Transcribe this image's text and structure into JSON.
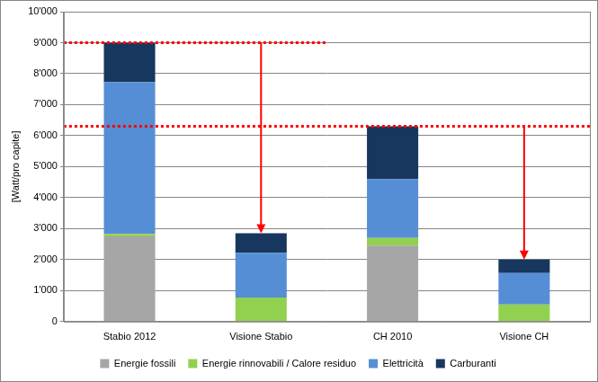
{
  "chart_data": {
    "type": "bar",
    "y_label": "[Watt/pro capite]",
    "categories": [
      "Stabio 2012",
      "Visione Stabio",
      "CH 2010",
      "Visione CH"
    ],
    "series": [
      {
        "name": "Energie fossili",
        "color": "#a6a6a6",
        "values": [
          2750,
          0,
          2450,
          0
        ]
      },
      {
        "name": "Energie rinnovabili / Calore residuo",
        "color": "#92d050",
        "values": [
          80,
          780,
          250,
          550
        ]
      },
      {
        "name": "Elettricità",
        "color": "#558ed5",
        "values": [
          4900,
          1440,
          1900,
          1020
        ]
      },
      {
        "name": "Carburanti",
        "color": "#17375e",
        "values": [
          1270,
          630,
          1700,
          430
        ]
      }
    ],
    "stacked": true,
    "ylim": [
      0,
      10000
    ],
    "yticks": [
      0,
      {
        "value": 1000,
        "label": "1'000"
      },
      {
        "value": 2000,
        "label": "2'000"
      },
      {
        "value": 3000,
        "label": "3'000"
      },
      {
        "value": 4000,
        "label": "4'000"
      },
      {
        "value": 5000,
        "label": "5'000"
      },
      {
        "value": 6000,
        "label": "6'000"
      },
      {
        "value": 7000,
        "label": "7'000"
      },
      {
        "value": 8000,
        "label": "8'000"
      },
      {
        "value": 9000,
        "label": "9'000"
      },
      {
        "value": 10000,
        "label": "10'000"
      }
    ],
    "grid": true,
    "legend": "bottom",
    "reference_lines": [
      {
        "value": 9000,
        "color": "#ff0000",
        "line_style": "dotted",
        "arrow_to": "Visione Stabio"
      },
      {
        "value": 6300,
        "color": "#ff0000",
        "line_style": "dotted",
        "arrow_to": "Visione CH"
      }
    ]
  }
}
